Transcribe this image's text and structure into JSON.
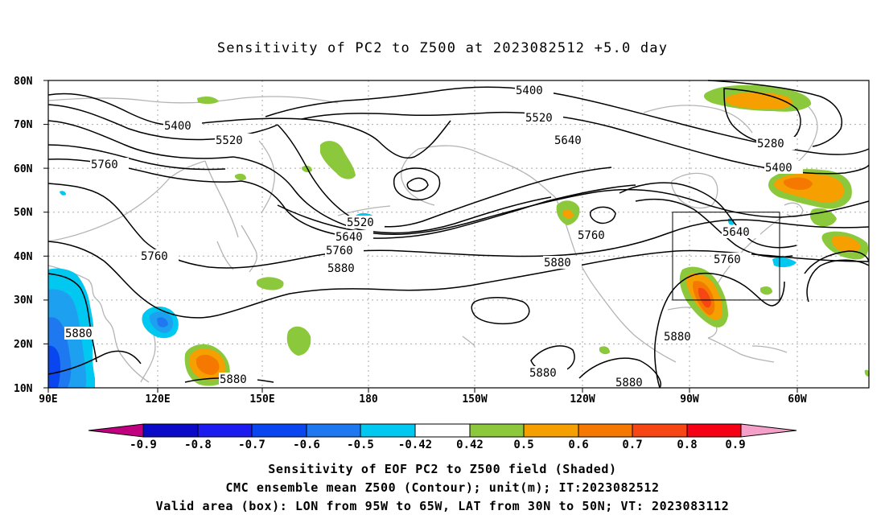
{
  "title": "Sensitivity of PC2 to Z500 at 2023082512 +5.0 day",
  "map": {
    "lat_ticks": [
      "80N",
      "70N",
      "60N",
      "50N",
      "40N",
      "30N",
      "20N",
      "10N"
    ],
    "lon_ticks": [
      "90E",
      "120E",
      "150E",
      "180",
      "150W",
      "120W",
      "90W",
      "60W"
    ],
    "contour_labels": [
      "5400",
      "5520",
      "5640",
      "5760",
      "5880",
      "5280"
    ],
    "valid_box": {
      "lon": [
        "95W",
        "65W"
      ],
      "lat": [
        "30N",
        "50N"
      ]
    }
  },
  "colorbar": {
    "labels": [
      "-0.9",
      "-0.8",
      "-0.7",
      "-0.6",
      "-0.5",
      "-0.42",
      "0.42",
      "0.5",
      "0.6",
      "0.7",
      "0.8",
      "0.9"
    ],
    "colors": [
      "#c0007f",
      "#0a0ac8",
      "#1c1cf0",
      "#0a46f0",
      "#1e78f0",
      "#1ea0f0",
      "#00c8f0",
      "#ffffff",
      "#8cc83c",
      "#f5a000",
      "#f57800",
      "#f54614",
      "#f50014",
      "#f5a0c8"
    ]
  },
  "colors": {
    "contour": "#000000",
    "coast": "#b4b4b4",
    "grid": "#aaaaaa",
    "land_positive": "#8cc83c",
    "cyan": "#00c8f0"
  },
  "captions": {
    "line1": "Sensitivity of EOF PC2 to Z500 field (Shaded)",
    "line2": "CMC ensemble mean Z500 (Contour); unit(m); IT:2023082512",
    "line3": "Valid area (box): LON from 95W to 65W, LAT from 30N to 50N; VT: 2023083112"
  }
}
